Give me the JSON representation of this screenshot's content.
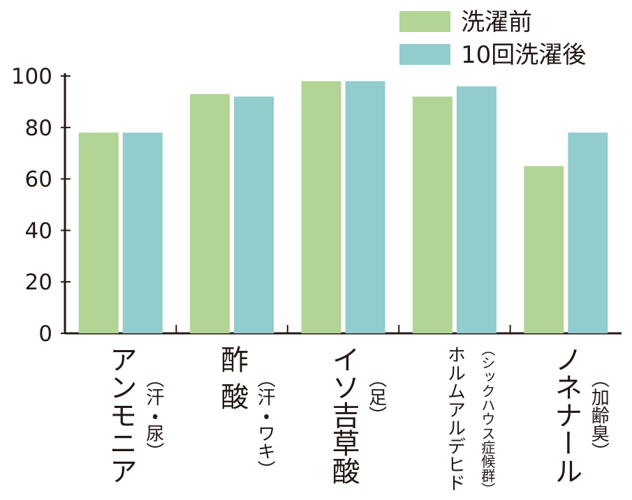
{
  "chart_data": {
    "type": "bar",
    "categories": [
      "アンモニア",
      "酢 酸",
      "イソ吉草酸",
      "ホルムアルデヒド",
      "ノネナール"
    ],
    "category_notes": [
      "（汗・尿）",
      "（汗・ワキ）",
      "（足）",
      "（シックハウス症候群）",
      "（加齢臭）"
    ],
    "series": [
      {
        "name": "洗濯前",
        "color": "#b2d494",
        "values": [
          78,
          93,
          98,
          92,
          65
        ]
      },
      {
        "name": "10回洗濯後",
        "color": "#92cccd",
        "values": [
          78,
          92,
          98,
          96,
          78
        ]
      }
    ],
    "ylim": [
      0,
      100
    ],
    "yticks": [
      0,
      20,
      40,
      60,
      80,
      100
    ],
    "grid": false,
    "legend": "top-right"
  }
}
